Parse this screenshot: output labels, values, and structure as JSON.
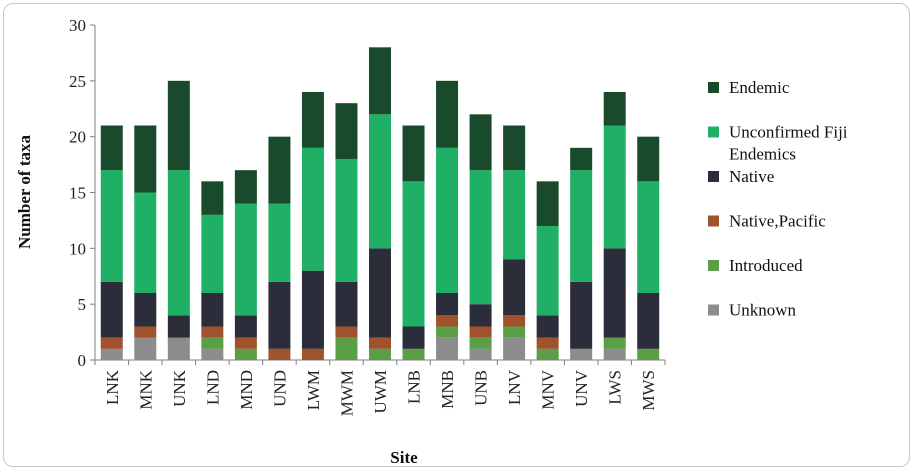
{
  "chart_data": {
    "type": "bar",
    "stacked": true,
    "title": "",
    "xlabel": "Site",
    "ylabel": "Number of taxa",
    "ylim": [
      0,
      30
    ],
    "yticks": [
      0,
      5,
      10,
      15,
      20,
      25,
      30
    ],
    "grid": false,
    "legend_position": "right",
    "categories": [
      "LNK",
      "MNK",
      "UNK",
      "LND",
      "MND",
      "UND",
      "LWM",
      "MWM",
      "UWM",
      "LNB",
      "MNB",
      "UNB",
      "LNV",
      "MNV",
      "UNV",
      "LWS",
      "MWS"
    ],
    "series": [
      {
        "name": "Unknown",
        "color": "#8c8c8c",
        "values": [
          1,
          2,
          2,
          1,
          0,
          0,
          0,
          0,
          0,
          0,
          2,
          1,
          2,
          0,
          1,
          1,
          0
        ]
      },
      {
        "name": "Introduced",
        "color": "#5a9e46",
        "values": [
          0,
          0,
          0,
          1,
          1,
          0,
          0,
          2,
          1,
          1,
          1,
          1,
          1,
          1,
          0,
          1,
          1
        ]
      },
      {
        "name": "Native,Pacific",
        "color": "#a0522d",
        "values": [
          1,
          1,
          0,
          1,
          1,
          1,
          1,
          1,
          1,
          0,
          1,
          1,
          1,
          1,
          0,
          0,
          0
        ]
      },
      {
        "name": "Native",
        "color": "#2b2d3a",
        "values": [
          5,
          3,
          2,
          3,
          2,
          6,
          7,
          4,
          8,
          2,
          2,
          2,
          5,
          2,
          6,
          8,
          5
        ]
      },
      {
        "name": "Unconfirmed Fiji Endemics",
        "color": "#1fb065",
        "values": [
          10,
          9,
          13,
          7,
          10,
          7,
          11,
          11,
          12,
          13,
          13,
          12,
          8,
          8,
          10,
          11,
          10
        ]
      },
      {
        "name": "Endemic",
        "color": "#1a4a2c",
        "values": [
          4,
          6,
          8,
          3,
          3,
          6,
          5,
          5,
          6,
          5,
          6,
          5,
          4,
          4,
          2,
          3,
          4
        ]
      }
    ],
    "legend_entries": [
      {
        "lines": [
          "Endemic"
        ],
        "color": "#1a4a2c"
      },
      {
        "lines": [
          "Unconfirmed Fiji",
          "Endemics"
        ],
        "color": "#1fb065"
      },
      {
        "lines": [
          "Native"
        ],
        "color": "#2b2d3a"
      },
      {
        "lines": [
          "Native,Pacific"
        ],
        "color": "#a0522d"
      },
      {
        "lines": [
          "Introduced"
        ],
        "color": "#5a9e46"
      },
      {
        "lines": [
          "Unknown"
        ],
        "color": "#8c8c8c"
      }
    ]
  }
}
